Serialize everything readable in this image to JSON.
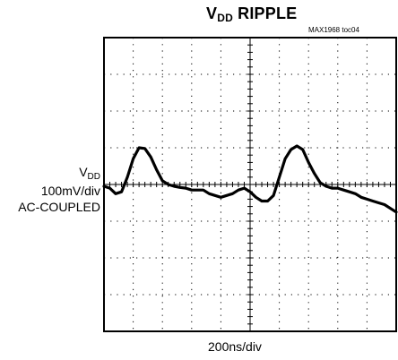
{
  "title": {
    "main": "V",
    "subscript": "DD",
    "rest": " RIPPLE"
  },
  "figure_id": "MAX1968 toc04",
  "y_label": {
    "main": "V",
    "subscript": "DD",
    "scale": "100mV/div",
    "coupling": "AC-COUPLED"
  },
  "x_label": "200ns/div",
  "chart_data": {
    "type": "line",
    "title": "VDD RIPPLE",
    "xlabel": "200ns/div",
    "ylabel": "VDD 100mV/div AC-COUPLED",
    "x_unit": "ns",
    "y_unit": "mV",
    "xlim": [
      0,
      2000
    ],
    "ylim": [
      -400,
      400
    ],
    "grid": true,
    "trace_color": "#000000",
    "series": [
      {
        "x": [
          0,
          40,
          80,
          120,
          160,
          200,
          240,
          280,
          320,
          360,
          400,
          440,
          480,
          520,
          560,
          600,
          640,
          680,
          720,
          760,
          800,
          840,
          880,
          920,
          960,
          1000,
          1040,
          1080,
          1120,
          1160,
          1200,
          1240,
          1280,
          1320,
          1360,
          1400,
          1440,
          1480,
          1520,
          1560,
          1600,
          1640,
          1680,
          1720,
          1760,
          1800,
          1840,
          1880,
          1920,
          1960,
          2000
        ],
        "y": [
          -5,
          -10,
          -25,
          -20,
          20,
          70,
          100,
          98,
          75,
          40,
          10,
          0,
          -5,
          -8,
          -10,
          -15,
          -15,
          -15,
          -25,
          -30,
          -35,
          -30,
          -25,
          -15,
          -10,
          -20,
          -35,
          -45,
          -45,
          -30,
          20,
          70,
          95,
          105,
          95,
          60,
          30,
          5,
          -5,
          -10,
          -10,
          -15,
          -20,
          -25,
          -35,
          -40,
          -45,
          -50,
          -55,
          -65,
          -75
        ]
      }
    ]
  }
}
